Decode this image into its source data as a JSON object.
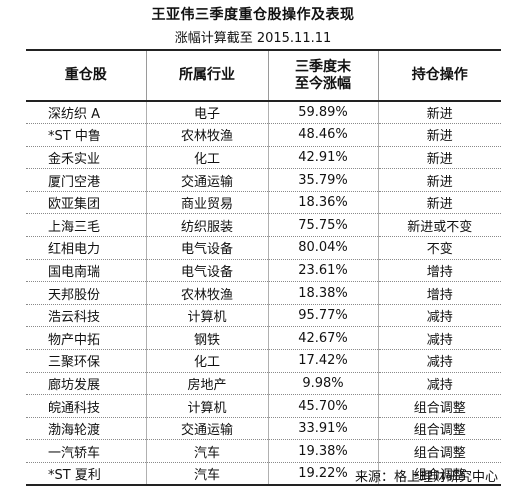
{
  "title": "王亚伟三季度重仓股操作及表现",
  "subtitle": "涨幅计算截至 2015.11.11",
  "headers": {
    "stock": "重仓股",
    "industry": "所属行业",
    "gain_line1": "三季度末",
    "gain_line2": "至今涨幅",
    "action": "持仓操作"
  },
  "rows": [
    {
      "stock": "深纺织 A",
      "industry": "电子",
      "gain": "59.89%",
      "action": "新进"
    },
    {
      "stock": "*ST 中鲁",
      "industry": "农林牧渔",
      "gain": "48.46%",
      "action": "新进"
    },
    {
      "stock": "金禾实业",
      "industry": "化工",
      "gain": "42.91%",
      "action": "新进"
    },
    {
      "stock": "厦门空港",
      "industry": "交通运输",
      "gain": "35.79%",
      "action": "新进"
    },
    {
      "stock": "欧亚集团",
      "industry": "商业贸易",
      "gain": "18.36%",
      "action": "新进"
    },
    {
      "stock": "上海三毛",
      "industry": "纺织服装",
      "gain": "75.75%",
      "action": "新进或不变"
    },
    {
      "stock": "红相电力",
      "industry": "电气设备",
      "gain": "80.04%",
      "action": "不变"
    },
    {
      "stock": "国电南瑞",
      "industry": "电气设备",
      "gain": "23.61%",
      "action": "增持"
    },
    {
      "stock": "天邦股份",
      "industry": "农林牧渔",
      "gain": "18.38%",
      "action": "增持"
    },
    {
      "stock": "浩云科技",
      "industry": "计算机",
      "gain": "95.77%",
      "action": "减持"
    },
    {
      "stock": "物产中拓",
      "industry": "钢铁",
      "gain": "42.67%",
      "action": "减持"
    },
    {
      "stock": "三聚环保",
      "industry": "化工",
      "gain": "17.42%",
      "action": "减持"
    },
    {
      "stock": "廊坊发展",
      "industry": "房地产",
      "gain": "9.98%",
      "action": "减持"
    },
    {
      "stock": "皖通科技",
      "industry": "计算机",
      "gain": "45.70%",
      "action": "组合调整"
    },
    {
      "stock": "渤海轮渡",
      "industry": "交通运输",
      "gain": "33.91%",
      "action": "组合调整"
    },
    {
      "stock": "一汽轿车",
      "industry": "汽车",
      "gain": "19.38%",
      "action": "组合调整"
    },
    {
      "stock": "*ST 夏利",
      "industry": "汽车",
      "gain": "19.22%",
      "action": "组合调整"
    }
  ],
  "source": "来源：格上理财研究中心"
}
